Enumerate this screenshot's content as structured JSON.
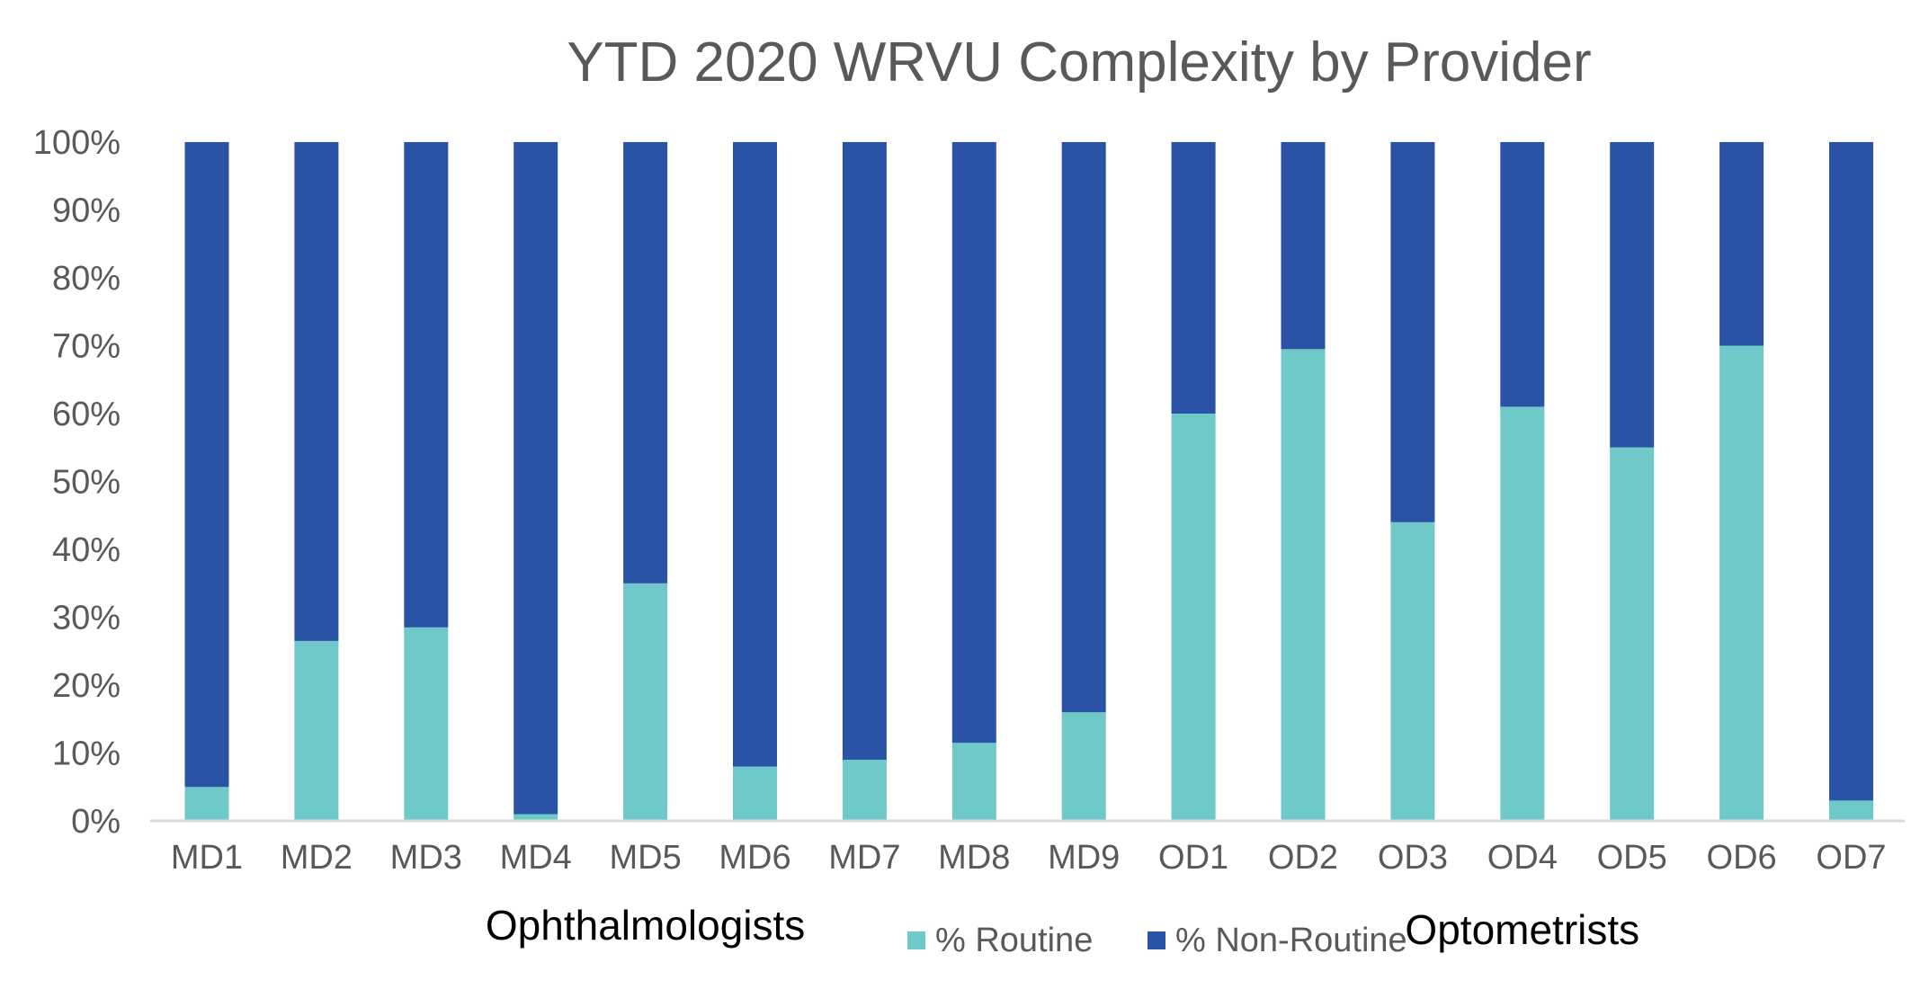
{
  "chart_data": {
    "type": "bar",
    "stacked": true,
    "title": "YTD 2020 WRVU Complexity by Provider",
    "categories": [
      "MD1",
      "MD2",
      "MD3",
      "MD4",
      "MD5",
      "MD6",
      "MD7",
      "MD8",
      "MD9",
      "OD1",
      "OD2",
      "OD3",
      "OD4",
      "OD5",
      "OD6",
      "OD7"
    ],
    "series": [
      {
        "name": "% Routine",
        "color": "#70C9C9",
        "values": [
          5,
          26.5,
          28.5,
          1,
          35,
          8,
          9,
          11.5,
          16,
          60,
          69.5,
          44,
          61,
          55,
          70,
          3
        ]
      },
      {
        "name": "% Non-Routine",
        "color": "#2A52A5",
        "values": [
          95,
          73.5,
          71.5,
          99,
          65,
          92,
          91,
          88.5,
          84,
          40,
          30.5,
          56,
          39,
          45,
          30,
          97
        ]
      }
    ],
    "ylim": [
      0,
      100
    ],
    "y_ticks": [
      "0%",
      "10%",
      "20%",
      "30%",
      "40%",
      "50%",
      "60%",
      "70%",
      "80%",
      "90%",
      "100%"
    ],
    "grid": false,
    "legend_position": "bottom",
    "group_labels": [
      {
        "label": "Ophthalmologists",
        "categories": [
          "MD1",
          "MD2",
          "MD3",
          "MD4",
          "MD5",
          "MD6",
          "MD7",
          "MD8",
          "MD9"
        ]
      },
      {
        "label": "Optometrists",
        "categories": [
          "OD1",
          "OD2",
          "OD3",
          "OD4",
          "OD5",
          "OD6",
          "OD7"
        ]
      }
    ],
    "colors": {
      "axis": "#D9D9D9",
      "tick_text": "#595959",
      "title_text": "#595959",
      "group_text": "#000000"
    }
  }
}
